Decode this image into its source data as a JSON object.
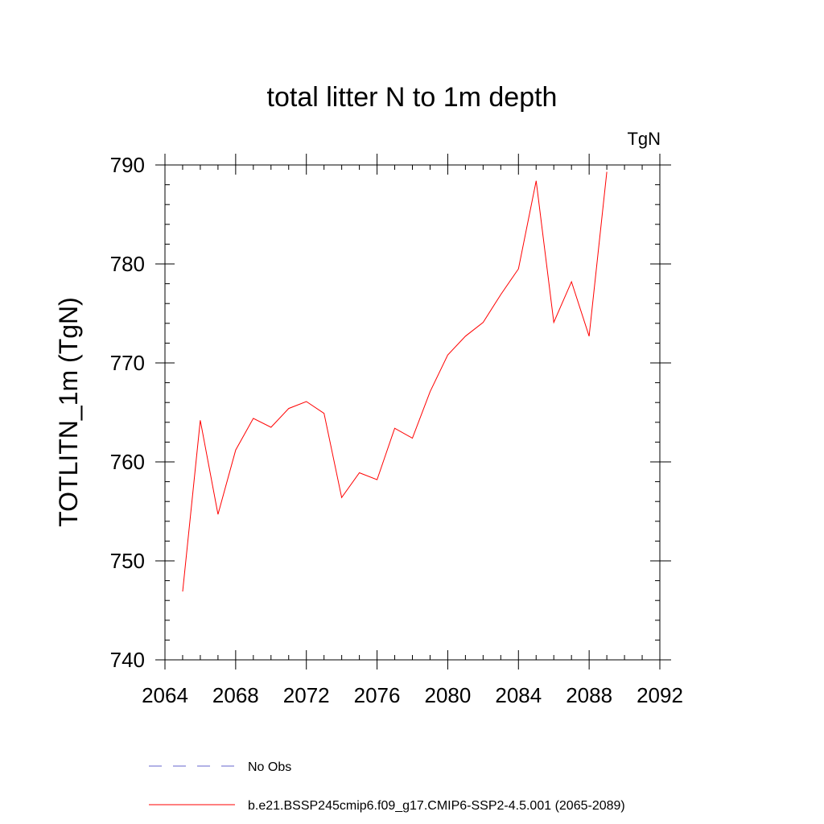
{
  "chart_data": {
    "type": "line",
    "title": "total litter N to 1m depth",
    "units_label": "TgN",
    "xlabel": "",
    "ylabel": "TOTLITN_1m  (TgN)",
    "xlim": [
      2064,
      2092
    ],
    "ylim": [
      740,
      790
    ],
    "x_ticks": [
      2064,
      2068,
      2072,
      2076,
      2080,
      2084,
      2088,
      2092
    ],
    "y_ticks": [
      740,
      750,
      760,
      770,
      780,
      790
    ],
    "grid": false,
    "legend_position": "bottom",
    "legend": [
      {
        "label": "No Obs",
        "style": "dashed",
        "color": "#6666cc"
      },
      {
        "label": "b.e21.BSSP245cmip6.f09_g17.CMIP6-SSP2-4.5.001 (2065-2089)",
        "style": "solid",
        "color": "#ff0000"
      }
    ],
    "series": [
      {
        "name": "b.e21.BSSP245cmip6.f09_g17.CMIP6-SSP2-4.5.001 (2065-2089)",
        "color": "#ff0000",
        "x": [
          2065,
          2066,
          2067,
          2068,
          2069,
          2070,
          2071,
          2072,
          2073,
          2074,
          2075,
          2076,
          2077,
          2078,
          2079,
          2080,
          2081,
          2082,
          2083,
          2084,
          2085,
          2086,
          2087,
          2088,
          2089
        ],
        "values": [
          746.9,
          764.2,
          754.7,
          761.2,
          764.4,
          763.5,
          765.4,
          766.1,
          764.9,
          756.4,
          758.9,
          758.2,
          763.4,
          762.4,
          767.1,
          770.8,
          772.7,
          774.1,
          776.9,
          779.5,
          788.4,
          774.1,
          778.2,
          772.7,
          789.3
        ]
      }
    ]
  }
}
